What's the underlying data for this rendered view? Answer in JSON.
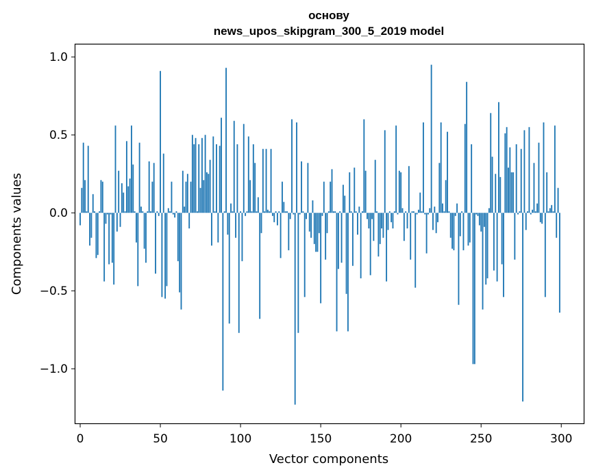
{
  "chart_data": {
    "type": "bar",
    "title": [
      "основу",
      "news_upos_skipgram_300_5_2019 model"
    ],
    "xlabel": "Vector components",
    "ylabel": "Components values",
    "xlim": [
      -3,
      314
    ],
    "ylim": [
      -1.35,
      1.08
    ],
    "xticks": [
      0,
      50,
      100,
      150,
      200,
      250,
      300
    ],
    "xtick_labels": [
      "0",
      "50",
      "100",
      "150",
      "200",
      "250",
      "300"
    ],
    "yticks": [
      -1.0,
      -0.5,
      0.0,
      0.5,
      1.0
    ],
    "ytick_labels": [
      "−1.0",
      "−0.5",
      "0.0",
      "0.5",
      "1.0"
    ],
    "grid": false,
    "bar_color": "#1f77b4",
    "categories_note": "component indices 0..299",
    "values": [
      -0.08,
      0.16,
      0.45,
      0.21,
      0.01,
      0.43,
      -0.21,
      -0.16,
      0.12,
      0.01,
      -0.29,
      -0.27,
      0.01,
      0.21,
      0.2,
      -0.44,
      -0.07,
      -0.01,
      -0.33,
      -0.01,
      -0.32,
      -0.46,
      0.56,
      -0.12,
      0.27,
      -0.09,
      0.19,
      0.13,
      0.01,
      0.46,
      0.17,
      0.22,
      0.56,
      0.31,
      0.01,
      -0.19,
      -0.47,
      0.45,
      0.04,
      0.01,
      -0.23,
      -0.32,
      0.01,
      0.33,
      0.01,
      0.2,
      0.32,
      -0.39,
      0.01,
      -0.02,
      0.91,
      -0.54,
      0.38,
      -0.55,
      -0.47,
      0.03,
      0.01,
      0.2,
      -0.01,
      -0.03,
      0.01,
      -0.31,
      -0.51,
      -0.62,
      0.27,
      0.04,
      0.2,
      0.25,
      -0.1,
      0.2,
      0.5,
      0.44,
      0.48,
      0.01,
      0.44,
      0.16,
      0.48,
      0.21,
      0.5,
      0.26,
      0.25,
      0.34,
      -0.21,
      0.49,
      0.01,
      0.44,
      -0.19,
      0.43,
      0.61,
      -1.14,
      0.01,
      0.93,
      -0.14,
      -0.71,
      0.06,
      0.01,
      0.59,
      -0.16,
      0.44,
      -0.77,
      0.01,
      -0.31,
      0.57,
      -0.02,
      0.01,
      0.49,
      0.21,
      0.01,
      0.44,
      0.32,
      0.01,
      0.1,
      -0.68,
      -0.13,
      0.41,
      0.01,
      0.41,
      0.02,
      0.01,
      0.41,
      -0.02,
      -0.06,
      0.01,
      -0.08,
      0.01,
      -0.29,
      0.2,
      0.07,
      0.01,
      0.01,
      -0.24,
      -0.04,
      0.6,
      -0.01,
      -1.23,
      0.58,
      -0.77,
      -0.01,
      0.33,
      0.01,
      -0.54,
      -0.04,
      0.32,
      -0.12,
      -0.16,
      0.08,
      -0.2,
      -0.25,
      -0.25,
      -0.13,
      -0.58,
      -0.02,
      0.2,
      -0.3,
      -0.13,
      0.01,
      0.2,
      0.28,
      0.01,
      0.01,
      -0.76,
      -0.36,
      0.01,
      -0.32,
      0.18,
      0.11,
      -0.52,
      -0.76,
      0.26,
      0.01,
      -0.34,
      0.29,
      0.01,
      -0.14,
      0.04,
      -0.42,
      0.01,
      0.6,
      0.27,
      -0.04,
      -0.1,
      -0.4,
      -0.04,
      -0.18,
      0.34,
      0.01,
      -0.28,
      -0.2,
      -0.1,
      -0.16,
      0.53,
      -0.44,
      -0.11,
      0.01,
      -0.06,
      -0.1,
      0.01,
      0.56,
      -0.01,
      0.27,
      0.26,
      0.03,
      -0.18,
      0.01,
      -0.1,
      0.3,
      -0.3,
      0.01,
      0.01,
      -0.48,
      -0.01,
      0.02,
      0.13,
      0.01,
      0.58,
      -0.01,
      -0.26,
      -0.01,
      0.03,
      0.95,
      -0.11,
      0.04,
      -0.13,
      -0.06,
      0.32,
      0.58,
      0.06,
      0.01,
      0.21,
      0.52,
      0.01,
      -0.16,
      -0.23,
      -0.24,
      -0.02,
      0.06,
      -0.59,
      -0.15,
      0.01,
      -0.24,
      0.57,
      0.84,
      -0.21,
      -0.19,
      0.44,
      -0.97,
      -0.97,
      -0.01,
      -0.02,
      -0.08,
      -0.12,
      -0.62,
      -0.09,
      -0.46,
      -0.42,
      0.03,
      0.64,
      0.36,
      -0.37,
      0.25,
      -0.44,
      0.71,
      0.23,
      -0.33,
      -0.54,
      0.51,
      0.55,
      0.29,
      0.42,
      0.26,
      0.26,
      -0.3,
      0.44,
      -0.01,
      0.01,
      0.41,
      -1.21,
      0.53,
      -0.11,
      0.01,
      0.55,
      -0.01,
      0.02,
      0.32,
      0.01,
      0.06,
      0.45,
      -0.06,
      -0.07,
      0.58,
      -0.54,
      0.26,
      0.01,
      0.03,
      0.05,
      0.01,
      0.56,
      -0.16,
      0.16,
      -0.64
    ]
  }
}
